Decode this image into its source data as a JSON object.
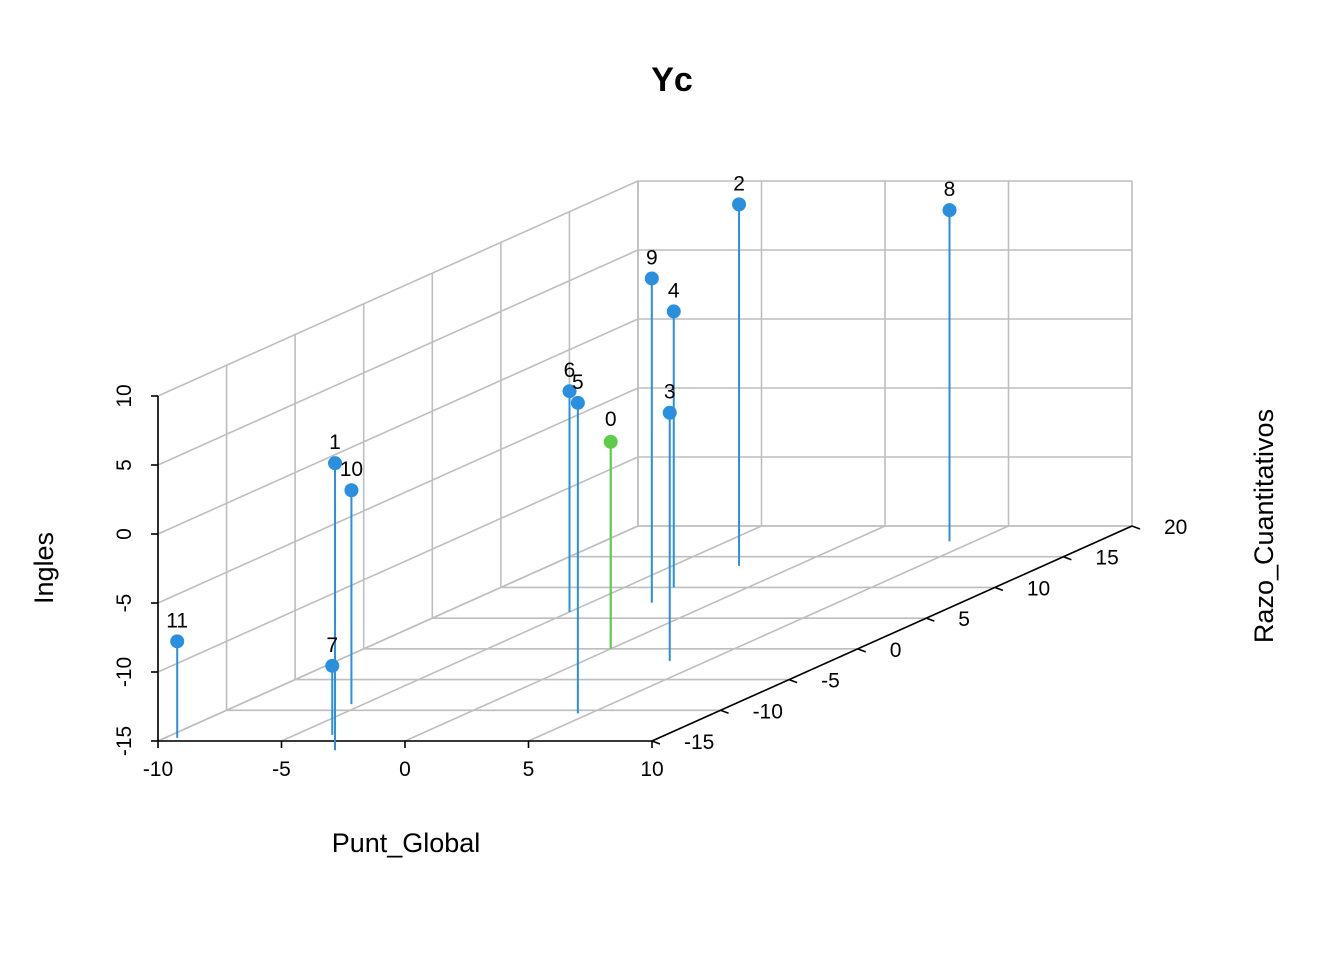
{
  "chart_data": {
    "type": "scatter3d",
    "title": "Yc",
    "xlabel": "Punt_Global",
    "ylabel": "Razo_Cuantitativos",
    "zlabel": "Ingles",
    "xlim": [
      -10,
      10
    ],
    "ylim": [
      -15,
      20
    ],
    "zlim": [
      -15,
      10
    ],
    "x_ticks": [
      "-10",
      "-5",
      "0",
      "5",
      "10"
    ],
    "y_ticks": [
      "-15",
      "-10",
      "-5",
      "0",
      "5",
      "10",
      "15",
      "20"
    ],
    "z_ticks": [
      "-15",
      "-10",
      "-5",
      "0",
      "5",
      "10"
    ],
    "grid": true,
    "colors": {
      "points": "#2b8fdf",
      "centroid": "#5ecb4a",
      "grid": "#bebebe"
    },
    "points": [
      {
        "label": "1",
        "x": -2,
        "y": -16.5,
        "z": 5.8
      },
      {
        "label": "2",
        "x": -2.3,
        "y": 13.5,
        "z": 11.2
      },
      {
        "label": "3",
        "x": 3.5,
        "y": -2,
        "z": 3
      },
      {
        "label": "4",
        "x": -3,
        "y": 10,
        "z": 5
      },
      {
        "label": "5",
        "x": 4.5,
        "y": -10.5,
        "z": 7.5
      },
      {
        "label": "6",
        "x": -5,
        "y": 6,
        "z": 1
      },
      {
        "label": "7",
        "x": -3.5,
        "y": -14,
        "z": -10
      },
      {
        "label": "8",
        "x": 4,
        "y": 17.5,
        "z": 9
      },
      {
        "label": "9",
        "x": -2.5,
        "y": 7.5,
        "z": 8.5
      },
      {
        "label": "10",
        "x": -5.5,
        "y": -9,
        "z": 0.5
      },
      {
        "label": "11",
        "x": -9.5,
        "y": -14.5,
        "z": -8
      }
    ],
    "centroid": {
      "label": "0",
      "x": 0,
      "y": 0,
      "z": 0
    }
  }
}
